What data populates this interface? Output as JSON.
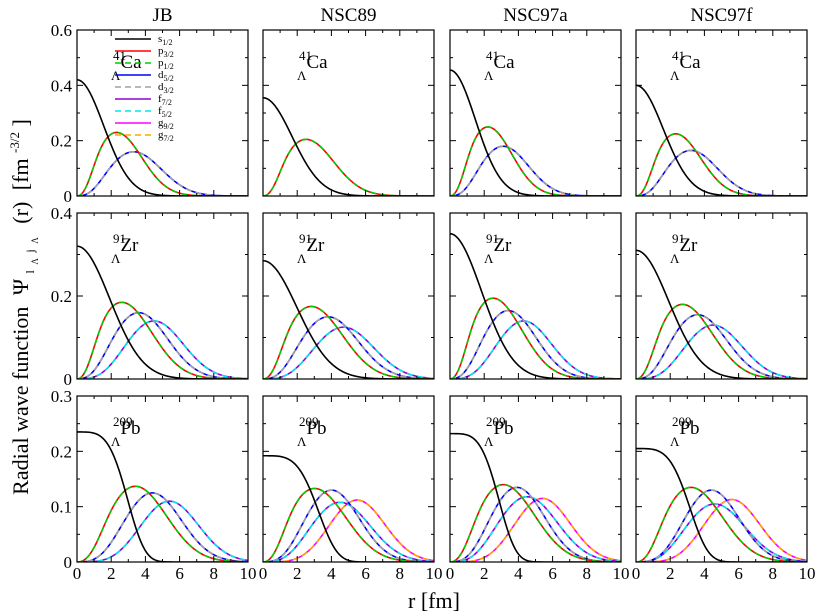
{
  "chart_data": {
    "type": "line",
    "title": "",
    "xlabel": "r [fm]",
    "ylabel": "Radial wave function",
    "ylabel_psi": "Ψ",
    "ylabel_psi_sub1": "l",
    "ylabel_psi_sub2": "Λ",
    "ylabel_psi_sub3": "j",
    "ylabel_psi_sub4": "Λ",
    "ylabel_arg": "(r)",
    "ylabel_unit_open": "[fm",
    "ylabel_unit_exp": "-3/2",
    "ylabel_unit_close": "]",
    "columns": [
      "JB",
      "NSC89",
      "NSC97a",
      "NSC97f"
    ],
    "xlim": [
      0,
      10
    ],
    "xticks": [
      "0",
      "2",
      "4",
      "6",
      "8",
      "10"
    ],
    "rows": [
      {
        "nucleus": {
          "mass": "41",
          "lambda": "Λ",
          "symbol": "Ca"
        },
        "ylim": [
          0,
          0.6
        ],
        "yticks": [
          "0",
          "0.2",
          "0.4",
          "0.6"
        ],
        "panels": [
          {
            "column": "JB",
            "states": {
              "s": [
                0.42,
                0,
                2.2
              ],
              "p": [
                0.23,
                2.3,
                2.1
              ],
              "d": [
                0.16,
                3.3,
                2.3
              ]
            }
          },
          {
            "column": "NSC89",
            "states": {
              "s": [
                0.355,
                0,
                2.4
              ],
              "p": [
                0.205,
                2.5,
                2.3
              ]
            }
          },
          {
            "column": "NSC97a",
            "states": {
              "s": [
                0.455,
                0,
                2.1
              ],
              "p": [
                0.25,
                2.2,
                2.0
              ],
              "d": [
                0.18,
                3.1,
                2.1
              ]
            }
          },
          {
            "column": "NSC97f",
            "states": {
              "s": [
                0.4,
                0,
                2.25
              ],
              "p": [
                0.225,
                2.3,
                2.1
              ],
              "d": [
                0.165,
                3.2,
                2.2
              ]
            }
          }
        ]
      },
      {
        "nucleus": {
          "mass": "91",
          "lambda": "Λ",
          "symbol": "Zr"
        },
        "ylim": [
          0,
          0.4
        ],
        "yticks": [
          "0",
          "0.2",
          "0.4"
        ],
        "panels": [
          {
            "column": "JB",
            "states": {
              "s": [
                0.32,
                0,
                2.7
              ],
              "p": [
                0.185,
                2.6,
                2.5
              ],
              "d": [
                0.16,
                3.6,
                2.4
              ],
              "f": [
                0.14,
                4.5,
                2.4
              ]
            }
          },
          {
            "column": "NSC89",
            "states": {
              "s": [
                0.285,
                0,
                2.8
              ],
              "p": [
                0.175,
                2.8,
                2.6
              ],
              "d": [
                0.15,
                3.8,
                2.5
              ],
              "f": [
                0.125,
                4.7,
                2.5
              ]
            }
          },
          {
            "column": "NSC97a",
            "states": {
              "s": [
                0.35,
                0,
                2.6
              ],
              "p": [
                0.195,
                2.5,
                2.4
              ],
              "d": [
                0.165,
                3.4,
                2.3
              ],
              "f": [
                0.14,
                4.3,
                2.3
              ]
            }
          },
          {
            "column": "NSC97f",
            "states": {
              "s": [
                0.31,
                0,
                2.7
              ],
              "p": [
                0.18,
                2.7,
                2.5
              ],
              "d": [
                0.155,
                3.6,
                2.4
              ],
              "f": [
                0.13,
                4.5,
                2.4
              ]
            }
          }
        ]
      },
      {
        "nucleus": {
          "mass": "209",
          "lambda": "Λ",
          "symbol": "Pb"
        },
        "ylim": [
          0,
          0.3
        ],
        "yticks": [
          "0",
          "0.1",
          "0.2",
          "0.3"
        ],
        "panels": [
          {
            "column": "JB",
            "states": {
              "s": [
                0.235,
                0,
                3.2,
                4
              ],
              "p": [
                0.137,
                3.4,
                2.6
              ],
              "d": [
                0.125,
                4.4,
                2.4
              ],
              "f": [
                0.11,
                5.4,
                2.4
              ]
            }
          },
          {
            "column": "NSC89",
            "states": {
              "s": [
                0.192,
                0,
                3.5,
                4
              ],
              "p": [
                0.133,
                3.0,
                2.6
              ],
              "d": [
                0.13,
                4.0,
                2.3
              ],
              "f": [
                0.108,
                4.5,
                2.5
              ],
              "g": [
                0.112,
                5.5,
                2.3
              ]
            }
          },
          {
            "column": "NSC97a",
            "states": {
              "s": [
                0.232,
                0,
                3.1,
                4
              ],
              "p": [
                0.14,
                3.1,
                2.6
              ],
              "d": [
                0.135,
                3.9,
                2.3
              ],
              "f": [
                0.118,
                4.5,
                2.5
              ],
              "g": [
                0.115,
                5.4,
                2.3
              ]
            }
          },
          {
            "column": "NSC97f",
            "states": {
              "s": [
                0.205,
                0,
                3.4,
                4
              ],
              "p": [
                0.135,
                3.2,
                2.6
              ],
              "d": [
                0.13,
                4.4,
                2.3
              ],
              "f": [
                0.105,
                4.6,
                2.5
              ],
              "g": [
                0.113,
                5.6,
                2.3
              ]
            }
          }
        ]
      }
    ],
    "state_params_note": "each state: [peak amplitude, peak radius in fm, width in fm, optional flat-top exponent]",
    "legend": {
      "placement": "top-left panel, top-center",
      "entries": [
        {
          "l": "s",
          "sub": "1/2",
          "color": "#000000",
          "dash": "solid",
          "group": "s"
        },
        {
          "l": "p",
          "sub": "3/2",
          "color": "#ff0000",
          "dash": "solid",
          "group": "p"
        },
        {
          "l": "p",
          "sub": "1/2",
          "color": "#00cc00",
          "dash": "dashed",
          "group": "p"
        },
        {
          "l": "d",
          "sub": "5/2",
          "color": "#0000ff",
          "dash": "solid",
          "group": "d"
        },
        {
          "l": "d",
          "sub": "3/2",
          "color": "#a0a0a0",
          "dash": "dashed",
          "group": "d"
        },
        {
          "l": "f",
          "sub": "7/2",
          "color": "#9400d3",
          "dash": "solid",
          "group": "f"
        },
        {
          "l": "f",
          "sub": "5/2",
          "color": "#00e5ee",
          "dash": "dashed",
          "group": "f"
        },
        {
          "l": "g",
          "sub": "9/2",
          "color": "#ff00ff",
          "dash": "solid",
          "group": "g"
        },
        {
          "l": "g",
          "sub": "7/2",
          "color": "#ffa500",
          "dash": "dashed",
          "group": "g"
        }
      ]
    }
  }
}
